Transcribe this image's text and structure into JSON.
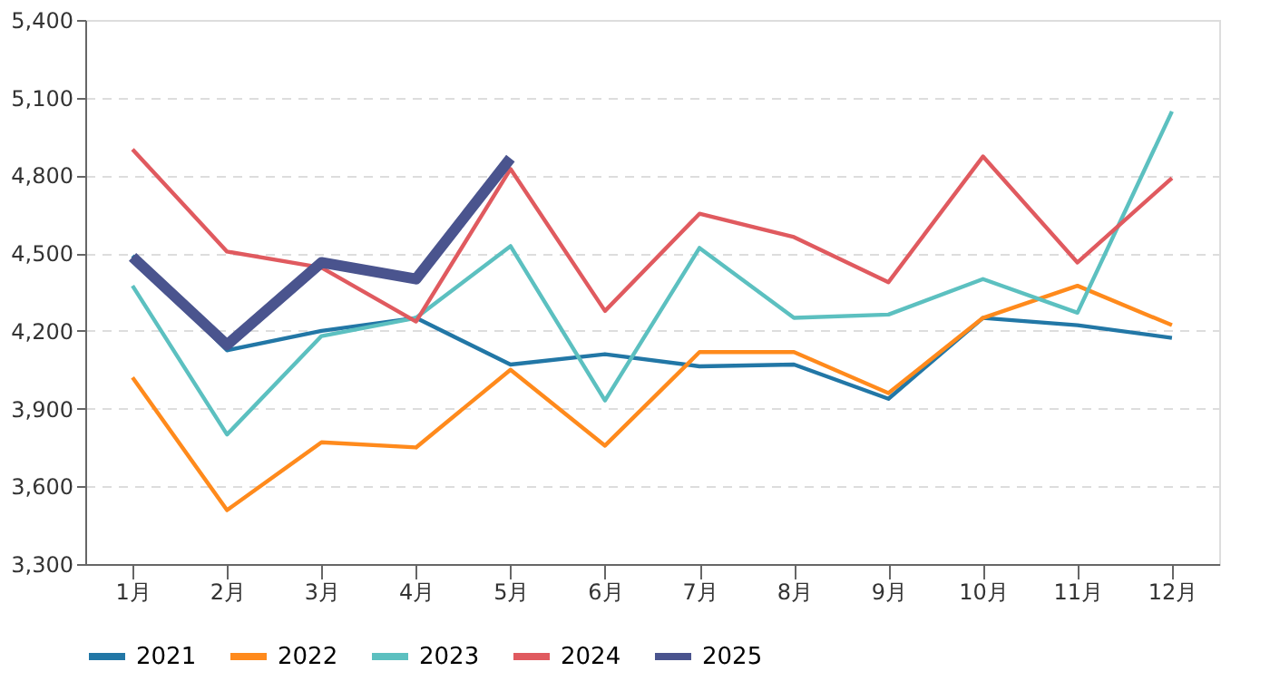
{
  "chart_data": {
    "type": "line",
    "categories": [
      "1月",
      "2月",
      "3月",
      "4月",
      "5月",
      "6月",
      "7月",
      "8月",
      "9月",
      "10月",
      "11月",
      "12月"
    ],
    "series": [
      {
        "name": "2021",
        "color": "#2277a6",
        "values": [
          4490,
          4125,
          4200,
          4250,
          4070,
          4110,
          4063,
          4070,
          3938,
          4250,
          4222,
          4173
        ]
      },
      {
        "name": "2022",
        "color": "#ff8a1c",
        "values": [
          4020,
          3508,
          3770,
          3750,
          4050,
          3757,
          4118,
          4118,
          3960,
          4250,
          4374,
          4222
        ]
      },
      {
        "name": "2023",
        "color": "#5cc0c0",
        "values": [
          4374,
          3800,
          4180,
          4250,
          4527,
          3931,
          4520,
          4250,
          4263,
          4400,
          4270,
          5047
        ]
      },
      {
        "name": "2024",
        "color": "#e05a5f",
        "values": [
          4900,
          4506,
          4444,
          4236,
          4825,
          4277,
          4652,
          4562,
          4388,
          4873,
          4464,
          4790
        ]
      },
      {
        "name": "2025",
        "color": "#4a548e",
        "values": [
          4485,
          4146,
          4464,
          4400,
          4866,
          null,
          null,
          null,
          null,
          null,
          null,
          null
        ]
      }
    ],
    "ylim": [
      3300,
      5400
    ],
    "yticks": [
      {
        "value": 3300,
        "label": "3,300"
      },
      {
        "value": 3600,
        "label": "3,600"
      },
      {
        "value": 3900,
        "label": "3,900"
      },
      {
        "value": 4200,
        "label": "4,200"
      },
      {
        "value": 4500,
        "label": "4,500"
      },
      {
        "value": 4800,
        "label": "4,800"
      },
      {
        "value": 5100,
        "label": "5,100"
      },
      {
        "value": 5400,
        "label": "5,400"
      }
    ],
    "grid": "y",
    "legend": "bottom",
    "marker": "none",
    "line_style": "solid"
  }
}
